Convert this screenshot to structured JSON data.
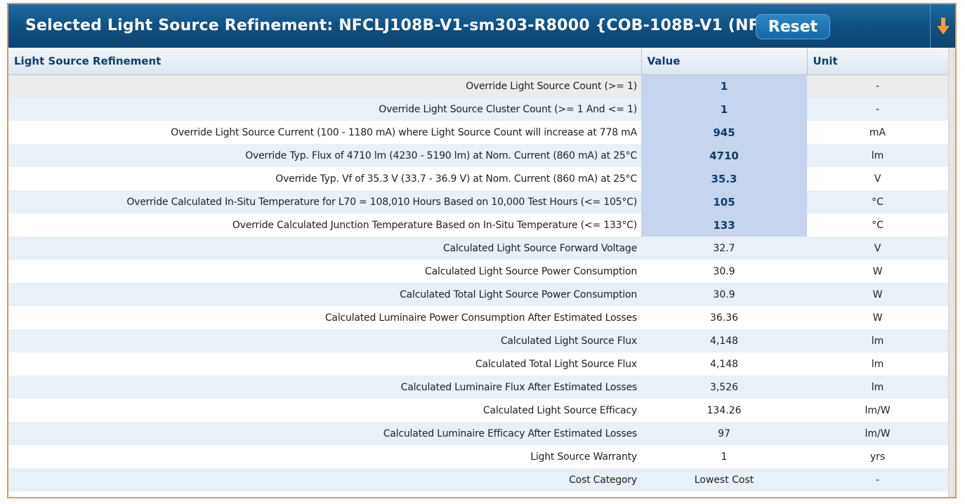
{
  "header": {
    "title": "Selected Light Source Refinement: NFCLJ108B-V1-sm303-R8000 {COB-108B-V1 (NFC)}",
    "reset_label": "Reset",
    "download_icon": "arrow-down-icon",
    "accent_color": "#ff9a2a"
  },
  "table": {
    "columns": [
      "Light Source Refinement",
      "Value",
      "Unit"
    ],
    "rows": [
      {
        "label": "Override Light Source Count (>= 1)",
        "value": "1",
        "unit": "-"
      },
      {
        "label": "Override Light Source Cluster Count (>= 1 And <= 1)",
        "value": "1",
        "unit": "-"
      },
      {
        "label": "Override Light Source Current (100 - 1180 mA) where Light Source Count will increase at 778 mA",
        "value": "945",
        "unit": "mA"
      },
      {
        "label": "Override Typ. Flux of 4710 lm (4230 - 5190 lm) at Nom. Current (860 mA) at 25°C",
        "value": "4710",
        "unit": "lm"
      },
      {
        "label": "Override Typ. Vf of 35.3 V (33.7 - 36.9 V) at Nom. Current (860 mA) at 25°C",
        "value": "35.3",
        "unit": "V"
      },
      {
        "label": "Override Calculated In-Situ Temperature for L70 = 108,010 Hours Based on 10,000 Test Hours (<= 105°C)",
        "value": "105",
        "unit": "°C"
      },
      {
        "label": "Override Calculated Junction Temperature Based on In-Situ Temperature (<= 133°C)",
        "value": "133",
        "unit": "°C"
      },
      {
        "label": "Calculated Light Source Forward Voltage",
        "value": "32.7",
        "unit": "V"
      },
      {
        "label": "Calculated Light Source Power Consumption",
        "value": "30.9",
        "unit": "W"
      },
      {
        "label": "Calculated Total Light Source Power Consumption",
        "value": "30.9",
        "unit": "W"
      },
      {
        "label": "Calculated Luminaire Power Consumption After Estimated Losses",
        "value": "36.36",
        "unit": "W"
      },
      {
        "label": "Calculated Light Source Flux",
        "value": "4,148",
        "unit": "lm"
      },
      {
        "label": "Calculated Total Light Source Flux",
        "value": "4,148",
        "unit": "lm"
      },
      {
        "label": "Calculated Luminaire Flux After Estimated Losses",
        "value": "3,526",
        "unit": "lm"
      },
      {
        "label": "Calculated Light Source Efficacy",
        "value": "134.26",
        "unit": "lm/W"
      },
      {
        "label": "Calculated Luminaire Efficacy After Estimated Losses",
        "value": "97",
        "unit": "lm/W"
      },
      {
        "label": "Light Source Warranty",
        "value": "1",
        "unit": "yrs"
      },
      {
        "label": "Cost Category",
        "value": "Lowest Cost",
        "unit": "-"
      }
    ]
  }
}
